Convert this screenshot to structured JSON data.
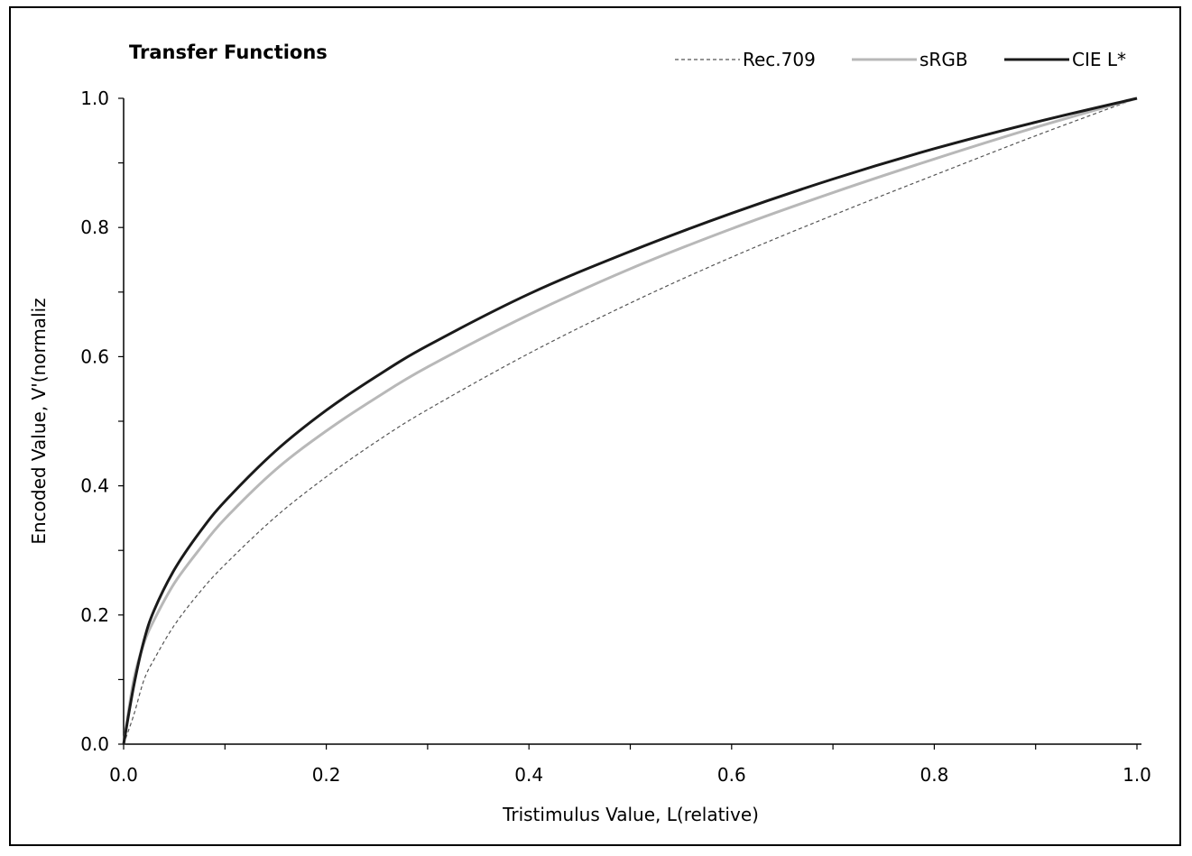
{
  "chart_data": {
    "type": "line",
    "title": "Transfer Functions",
    "xlabel": "Tristimulus Value, L(relative)",
    "ylabel": "Encoded Value, V'(normaliz",
    "xlim": [
      0,
      1
    ],
    "ylim": [
      0,
      1
    ],
    "x_ticks": [
      "0.0",
      "0.2",
      "0.4",
      "0.6",
      "0.8",
      "1.0"
    ],
    "y_ticks": [
      "0.0",
      "0.2",
      "0.4",
      "0.6",
      "0.8",
      "1.0"
    ],
    "grid": false,
    "legend_position": "top-right",
    "x": [
      0,
      0.01,
      0.02,
      0.03,
      0.05,
      0.075,
      0.1,
      0.15,
      0.2,
      0.25,
      0.3,
      0.4,
      0.5,
      0.6,
      0.7,
      0.8,
      0.9,
      1.0
    ],
    "series": [
      {
        "name": "Rec.709",
        "color": "#555555",
        "style": "dashed",
        "values": [
          0,
          0.045,
          0.099,
          0.131,
          0.184,
          0.235,
          0.278,
          0.352,
          0.414,
          0.469,
          0.518,
          0.605,
          0.683,
          0.754,
          0.819,
          0.881,
          0.942,
          1.0
        ]
      },
      {
        "name": "sRGB",
        "color": "#b8b8b8",
        "style": "solid",
        "values": [
          0,
          0.1,
          0.156,
          0.192,
          0.249,
          0.302,
          0.349,
          0.425,
          0.485,
          0.537,
          0.584,
          0.665,
          0.736,
          0.798,
          0.854,
          0.906,
          0.955,
          1.0
        ]
      },
      {
        "name": "CIE L*",
        "color": "#1a1a1a",
        "style": "solid",
        "values": [
          0,
          0.09,
          0.16,
          0.207,
          0.27,
          0.328,
          0.376,
          0.454,
          0.517,
          0.57,
          0.617,
          0.697,
          0.763,
          0.822,
          0.875,
          0.922,
          0.963,
          1.0
        ]
      }
    ]
  }
}
